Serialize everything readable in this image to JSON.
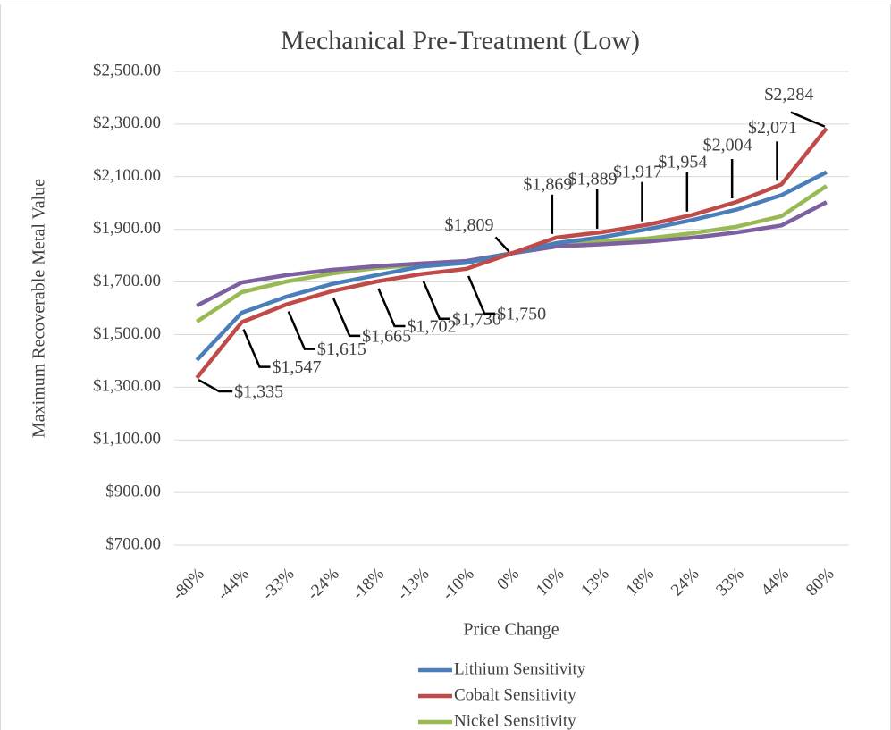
{
  "chart_data": {
    "type": "line",
    "title": "Mechanical Pre-Treatment (Low)",
    "x_label": "Price Change",
    "y_label": "Maximum Recoverable Metal Value",
    "categories": [
      "-80%",
      "-44%",
      "-33%",
      "-24%",
      "-18%",
      "-13%",
      "-10%",
      "0%",
      "10%",
      "13%",
      "18%",
      "24%",
      "33%",
      "44%",
      "80%"
    ],
    "ylim": [
      700,
      2500
    ],
    "yticks": [
      {
        "value": 700,
        "label": "$700.00"
      },
      {
        "value": 900,
        "label": "$900.00"
      },
      {
        "value": 1100,
        "label": "$1,100.00"
      },
      {
        "value": 1300,
        "label": "$1,300.00"
      },
      {
        "value": 1500,
        "label": "$1,500.00"
      },
      {
        "value": 1700,
        "label": "$1,700.00"
      },
      {
        "value": 1900,
        "label": "$1,900.00"
      },
      {
        "value": 2100,
        "label": "$2,100.00"
      },
      {
        "value": 2300,
        "label": "$2,300.00"
      },
      {
        "value": 2500,
        "label": "$2,500.00"
      }
    ],
    "grid": true,
    "legend": "bottom",
    "series": [
      {
        "name": "Lithium Sensitivity",
        "color": "#4a7ebb",
        "values": [
          1403,
          1583,
          1644,
          1692,
          1726,
          1759,
          1773,
          1809,
          1848,
          1870,
          1900,
          1935,
          1975,
          2030,
          2117
        ]
      },
      {
        "name": "Cobalt Sensitivity",
        "color": "#be4b48",
        "values": [
          1335,
          1547,
          1615,
          1665,
          1702,
          1730,
          1750,
          1809,
          1869,
          1889,
          1917,
          1954,
          2004,
          2071,
          2284
        ],
        "value_labels": [
          "$1,335",
          "$1,547",
          "$1,615",
          "$1,665",
          "$1,702",
          "$1,730",
          "$1,750",
          "$1,809",
          "$1,869",
          "$1,889",
          "$1,917",
          "$1,954",
          "$2,004",
          "$2,071",
          "$2,284"
        ]
      },
      {
        "name": "Nickel Sensitivity",
        "color": "#98b954",
        "values": [
          1549,
          1661,
          1702,
          1732,
          1753,
          1766,
          1776,
          1809,
          1845,
          1855,
          1865,
          1885,
          1910,
          1950,
          2065
        ]
      },
      {
        "color": "#7d60a0",
        "values": [
          1610,
          1698,
          1726,
          1746,
          1760,
          1770,
          1780,
          1809,
          1835,
          1843,
          1853,
          1868,
          1888,
          1915,
          2003
        ]
      }
    ]
  }
}
